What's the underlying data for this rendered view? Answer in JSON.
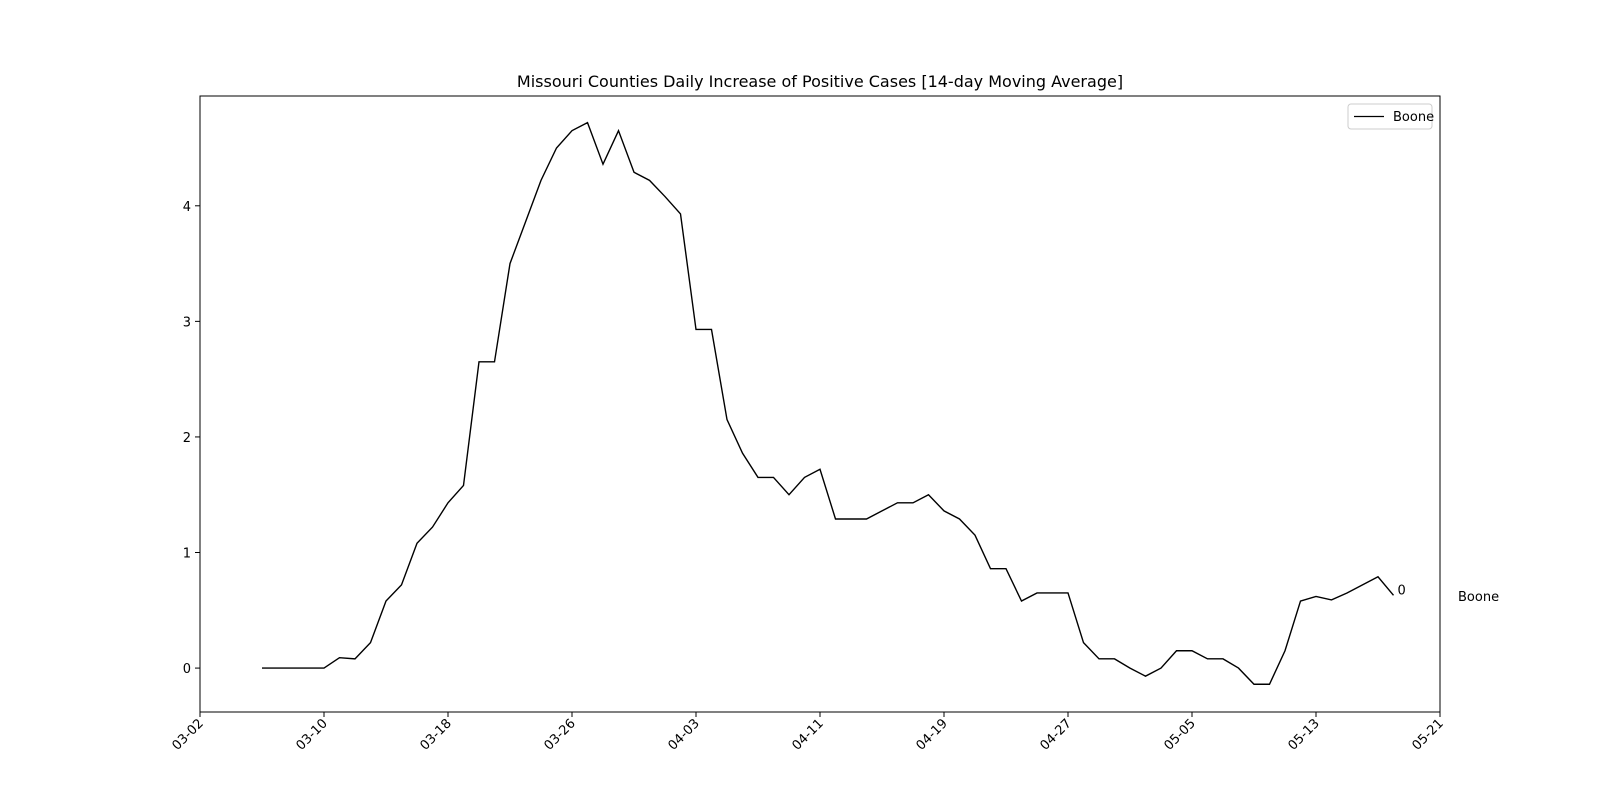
{
  "chart_data": {
    "type": "line",
    "title": "Missouri Counties Daily Increase of Positive Cases [14-day Moving Average]",
    "xlabel": "",
    "ylabel": "",
    "x_axis": "date",
    "xlim": [
      "03-02",
      "05-21"
    ],
    "ylim": [
      -0.38,
      4.95
    ],
    "xticks": [
      "03-02",
      "03-10",
      "03-18",
      "03-26",
      "04-03",
      "04-11",
      "04-19",
      "04-27",
      "05-05",
      "05-13",
      "05-21"
    ],
    "yticks": [
      0,
      1,
      2,
      3,
      4
    ],
    "grid": false,
    "legend": {
      "position": "top-right",
      "entries": [
        "Boone"
      ]
    },
    "series": [
      {
        "name": "Boone",
        "color": "#000000",
        "x": [
          "03-06",
          "03-07",
          "03-08",
          "03-09",
          "03-10",
          "03-11",
          "03-12",
          "03-13",
          "03-14",
          "03-15",
          "03-16",
          "03-17",
          "03-18",
          "03-19",
          "03-20",
          "03-21",
          "03-22",
          "03-23",
          "03-24",
          "03-25",
          "03-26",
          "03-27",
          "03-28",
          "03-29",
          "03-30",
          "03-31",
          "04-01",
          "04-02",
          "04-03",
          "04-04",
          "04-05",
          "04-06",
          "04-07",
          "04-08",
          "04-09",
          "04-10",
          "04-11",
          "04-12",
          "04-13",
          "04-14",
          "04-15",
          "04-16",
          "04-17",
          "04-18",
          "04-19",
          "04-20",
          "04-21",
          "04-22",
          "04-23",
          "04-24",
          "04-25",
          "04-26",
          "04-27",
          "04-28",
          "04-29",
          "04-30",
          "05-01",
          "05-02",
          "05-03",
          "05-04",
          "05-05",
          "05-06",
          "05-07",
          "05-08",
          "05-09",
          "05-10",
          "05-11",
          "05-12",
          "05-13",
          "05-14",
          "05-15",
          "05-16",
          "05-17",
          "05-18"
        ],
        "values": [
          0,
          0,
          0,
          0,
          0,
          0.09,
          0.08,
          0.22,
          0.58,
          0.72,
          1.08,
          1.22,
          1.43,
          1.58,
          2.65,
          2.65,
          3.5,
          3.86,
          4.22,
          4.5,
          4.65,
          4.72,
          4.36,
          4.65,
          4.29,
          4.22,
          4.08,
          3.93,
          2.93,
          2.93,
          2.15,
          1.86,
          1.65,
          1.65,
          1.5,
          1.65,
          1.72,
          1.29,
          1.29,
          1.29,
          1.36,
          1.43,
          1.43,
          1.5,
          1.36,
          1.29,
          1.15,
          0.86,
          0.86,
          0.58,
          0.65,
          0.65,
          0.65,
          0.22,
          0.08,
          0.08,
          0,
          -0.07,
          0,
          0.15,
          0.15,
          0.08,
          0.08,
          0,
          -0.14,
          -0.14,
          0.15,
          0.58,
          0.62,
          0.59,
          0.65,
          0.72,
          0.79,
          0.63
        ]
      }
    ],
    "annotations": [
      {
        "text": "0",
        "x": "05-18",
        "y": 0.67
      },
      {
        "text": "Boone",
        "position": "right-outside"
      }
    ]
  }
}
